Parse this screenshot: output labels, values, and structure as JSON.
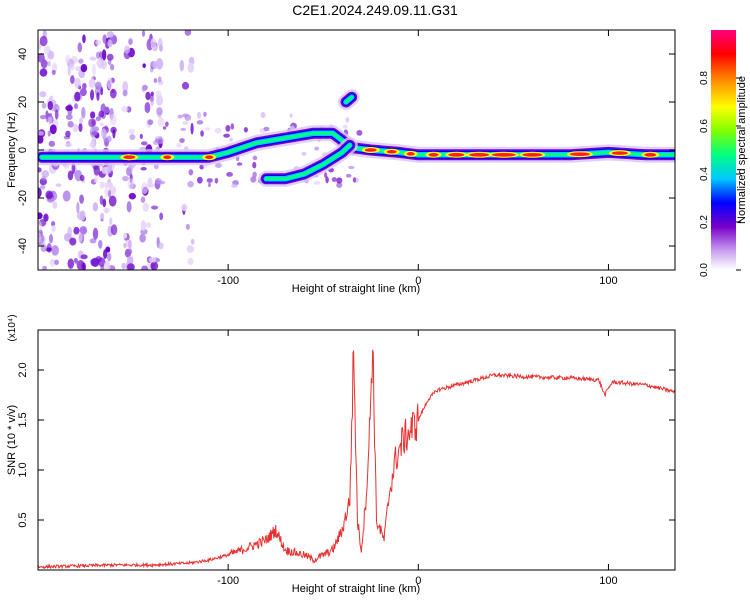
{
  "title": "C2E1.2024.249.09.11.G31",
  "chart_data": [
    {
      "type": "heatmap",
      "xlabel": "Height of straight line (km)",
      "ylabel": "Frequency (Hz)",
      "xlim": [
        -200,
        135
      ],
      "ylim": [
        -50,
        50
      ],
      "xticks": [
        -100,
        0,
        100
      ],
      "yticks": [
        -40,
        -20,
        0,
        20,
        40
      ],
      "colorbar": {
        "label": "Normalized spectral amplitude",
        "range": [
          0,
          1
        ],
        "ticks": [
          "0.0",
          "0.2",
          "0.4",
          "0.6",
          "0.8"
        ],
        "colors": [
          "#ffffff",
          "#c8a0f0",
          "#7800c8",
          "#0000ff",
          "#00c8ff",
          "#00ff80",
          "#80ff00",
          "#ffff00",
          "#ff8000",
          "#ff0000",
          "#ff0080"
        ]
      },
      "ridges": [
        {
          "name": "main",
          "points": [
            [
              -198,
              -3
            ],
            [
              -170,
              -3
            ],
            [
              -150,
              -3
            ],
            [
              -130,
              -3
            ],
            [
              -110,
              -3
            ],
            [
              -100,
              -1
            ],
            [
              -85,
              3
            ],
            [
              -70,
              5
            ],
            [
              -55,
              7
            ],
            [
              -45,
              7
            ],
            [
              -40,
              4
            ],
            [
              -35,
              1
            ],
            [
              -25,
              0
            ],
            [
              -10,
              -1
            ],
            [
              0,
              -2
            ],
            [
              20,
              -2
            ],
            [
              50,
              -2
            ],
            [
              80,
              -2
            ],
            [
              100,
              -1
            ],
            [
              120,
              -2
            ],
            [
              135,
              -2
            ]
          ]
        },
        {
          "name": "lower-branch",
          "points": [
            [
              -80,
              -12
            ],
            [
              -70,
              -12
            ],
            [
              -60,
              -10
            ],
            [
              -50,
              -6
            ],
            [
              -40,
              -1
            ],
            [
              -36,
              2
            ]
          ]
        },
        {
          "name": "blob",
          "points": [
            [
              -38,
              20
            ],
            [
              -35,
              22
            ]
          ]
        }
      ]
    },
    {
      "type": "line",
      "xlabel": "Height of straight line (km)",
      "ylabel": "SNR (10 * v/v)",
      "yscale_label": "(x10⁴)",
      "xlim": [
        -200,
        135
      ],
      "ylim": [
        0,
        2.4
      ],
      "xticks": [
        -100,
        0,
        100
      ],
      "yticks": [
        0.5,
        1.0,
        1.5,
        2.0
      ],
      "series": [
        {
          "color": "#e83030",
          "points": [
            [
              -200,
              0.03
            ],
            [
              -180,
              0.04
            ],
            [
              -160,
              0.05
            ],
            [
              -140,
              0.05
            ],
            [
              -120,
              0.07
            ],
            [
              -110,
              0.1
            ],
            [
              -100,
              0.15
            ],
            [
              -90,
              0.22
            ],
            [
              -80,
              0.3
            ],
            [
              -75,
              0.4
            ],
            [
              -70,
              0.2
            ],
            [
              -60,
              0.15
            ],
            [
              -55,
              0.1
            ],
            [
              -50,
              0.15
            ],
            [
              -45,
              0.2
            ],
            [
              -40,
              0.4
            ],
            [
              -36,
              0.7
            ],
            [
              -34,
              2.2
            ],
            [
              -32,
              0.5
            ],
            [
              -30,
              0.2
            ],
            [
              -28,
              0.6
            ],
            [
              -26,
              1.2
            ],
            [
              -24,
              2.3
            ],
            [
              -22,
              0.5
            ],
            [
              -18,
              0.3
            ],
            [
              -15,
              0.8
            ],
            [
              -12,
              1.1
            ],
            [
              -8,
              1.3
            ],
            [
              -4,
              1.4
            ],
            [
              0,
              1.5
            ],
            [
              5,
              1.7
            ],
            [
              10,
              1.8
            ],
            [
              20,
              1.85
            ],
            [
              30,
              1.9
            ],
            [
              40,
              1.95
            ],
            [
              60,
              1.93
            ],
            [
              80,
              1.92
            ],
            [
              95,
              1.9
            ],
            [
              98,
              1.75
            ],
            [
              102,
              1.88
            ],
            [
              120,
              1.85
            ],
            [
              135,
              1.78
            ]
          ]
        }
      ]
    }
  ]
}
